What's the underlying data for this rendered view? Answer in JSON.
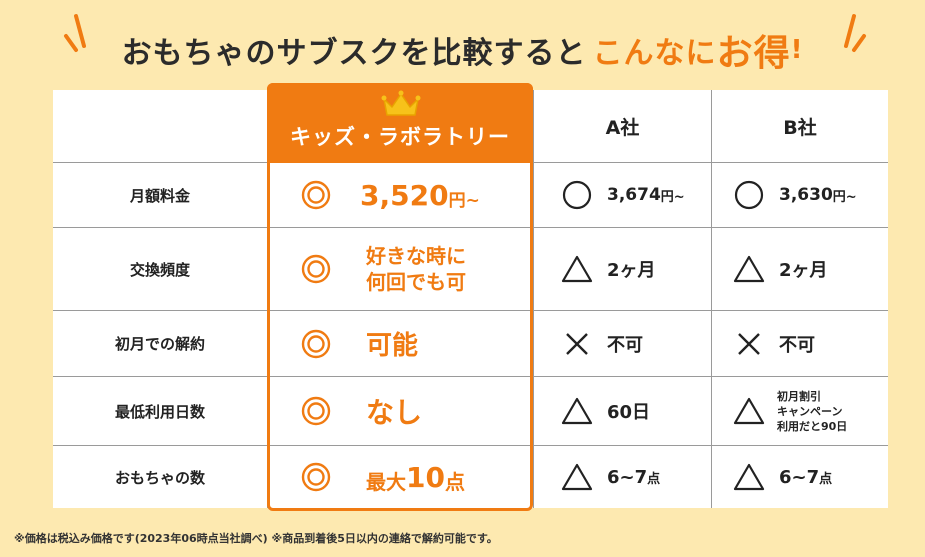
{
  "title": {
    "main": "おもちゃのサブスクを比較すると",
    "accent": "こんなに",
    "big": "お得",
    "excl": "!"
  },
  "columns": {
    "kids": "キッズ・ラボラトリー",
    "a": "A社",
    "b": "B社"
  },
  "rows": [
    {
      "label": "月額料金",
      "kids": {
        "mark": "double-circle",
        "value": "3,520",
        "unit": "円~"
      },
      "a": {
        "mark": "circle",
        "value": "3,674",
        "unit": "円~"
      },
      "b": {
        "mark": "circle",
        "value": "3,630",
        "unit": "円~"
      }
    },
    {
      "label": "交換頻度",
      "kids": {
        "mark": "double-circle",
        "value": "好きな時に",
        "value2": "何回でも可"
      },
      "a": {
        "mark": "triangle",
        "value": "2ヶ月"
      },
      "b": {
        "mark": "triangle",
        "value": "2ヶ月"
      }
    },
    {
      "label": "初月での解約",
      "kids": {
        "mark": "double-circle",
        "value": "可能"
      },
      "a": {
        "mark": "cross",
        "value": "不可"
      },
      "b": {
        "mark": "cross",
        "value": "不可"
      }
    },
    {
      "label": "最低利用日数",
      "kids": {
        "mark": "double-circle",
        "value": "なし"
      },
      "a": {
        "mark": "triangle",
        "value": "60日"
      },
      "b": {
        "mark": "triangle",
        "value": "初月割引",
        "value2": "キャンペーン",
        "value3": "利用だと90日"
      }
    },
    {
      "label": "おもちゃの数",
      "kids": {
        "mark": "double-circle",
        "value": "最大",
        "value_big": "10",
        "unit": "点"
      },
      "a": {
        "mark": "triangle",
        "value": "6~7",
        "unit": "点"
      },
      "b": {
        "mark": "triangle",
        "value": "6~7",
        "unit": "点"
      }
    }
  ],
  "note": "※価格は税込み価格です(2023年06時点当社調べ) ※商品到着後5日以内の連絡で解約可能です。",
  "colors": {
    "background": "#fde9b0",
    "accent": "#f07b12",
    "table": "#ffffff",
    "grid": "#9a9a9a"
  }
}
